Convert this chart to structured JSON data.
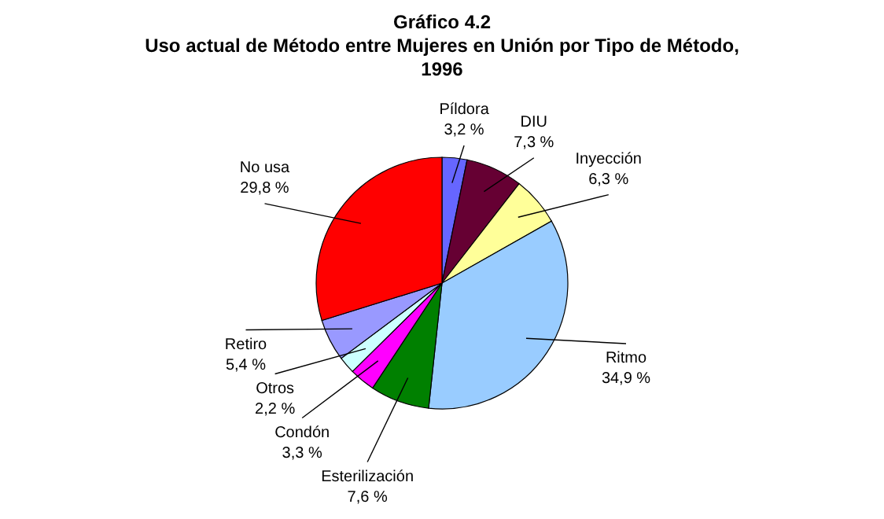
{
  "chart_data": {
    "type": "pie",
    "title": "Gráfico 4.2\nUso actual de Método entre Mujeres en Unión por Tipo de Método,\n1996",
    "categories": [
      "Píldora",
      "DIU",
      "Inyección",
      "Ritmo",
      "Esterilización",
      "Condón",
      "Otros",
      "Retiro",
      "No usa"
    ],
    "values": [
      3.2,
      7.3,
      6.3,
      34.9,
      7.6,
      3.3,
      2.2,
      5.4,
      29.8
    ],
    "value_labels": [
      "3,2 %",
      "7,3 %",
      "6,3 %",
      "34,9 %",
      "7,6 %",
      "3,3 %",
      "2,2 %",
      "5,4 %",
      "29,8 %"
    ],
    "colors": [
      "#6666ff",
      "#660033",
      "#ffff99",
      "#99ccff",
      "#008000",
      "#ff00ff",
      "#ccffff",
      "#9999ff",
      "#ff0000"
    ]
  }
}
